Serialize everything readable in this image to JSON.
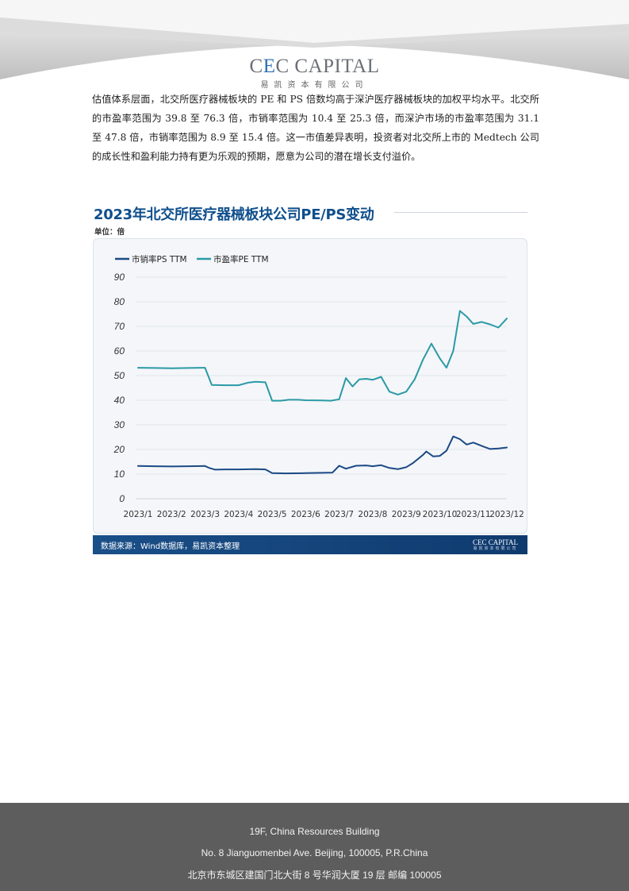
{
  "logo": {
    "brand_pre": "C",
    "brand_e": "E",
    "brand_post": "C CAPITAL",
    "sub": "易凯资本有限公司"
  },
  "body_text": "估值体系层面，北交所医疗器械板块的 PE 和 PS 倍数均高于深沪医疗器械板块的加权平均水平。北交所的市盈率范围为 39.8 至 76.3 倍，市销率范围为 10.4 至 25.3 倍，而深沪市场的市盈率范围为 31.1 至 47.8 倍，市销率范围为 8.9 至 15.4 倍。这一市值差异表明，投资者对北交所上市的 Medtech 公司的成长性和盈利能力持有更为乐观的预期，愿意为公司的潜在增长支付溢价。",
  "chart": {
    "title": "2023年北交所医疗器械板块公司PE/PS变动",
    "unit": "单位：倍"
  },
  "chart_data": {
    "type": "line",
    "title": "2023年北交所医疗器械板块公司PE/PS变动",
    "ylabel": "单位：倍",
    "ylim": [
      0,
      90
    ],
    "yticks": [
      0,
      10,
      20,
      30,
      40,
      50,
      60,
      70,
      80,
      90
    ],
    "x_labels": [
      "2023/1",
      "2023/2",
      "2023/3",
      "2023/4",
      "2023/5",
      "2023/6",
      "2023/7",
      "2023/8",
      "2023/9",
      "2023/10",
      "2023/11",
      "2023/12"
    ],
    "x_start": 1.0,
    "x_end": 12.0,
    "grid": "horizontal",
    "legend": "top-left",
    "series": [
      {
        "name": "市销率PS TTM",
        "color": "#1b4a86",
        "points": [
          [
            1.0,
            13.3
          ],
          [
            1.5,
            13.2
          ],
          [
            2.0,
            13.1
          ],
          [
            2.5,
            13.2
          ],
          [
            3.0,
            13.3
          ],
          [
            3.1,
            12.6
          ],
          [
            3.3,
            11.8
          ],
          [
            3.6,
            11.9
          ],
          [
            4.0,
            11.9
          ],
          [
            4.5,
            12.0
          ],
          [
            4.8,
            11.9
          ],
          [
            5.0,
            10.4
          ],
          [
            5.4,
            10.3
          ],
          [
            6.0,
            10.4
          ],
          [
            6.5,
            10.5
          ],
          [
            6.8,
            10.6
          ],
          [
            7.0,
            13.4
          ],
          [
            7.2,
            12.2
          ],
          [
            7.5,
            13.4
          ],
          [
            7.8,
            13.5
          ],
          [
            8.0,
            13.2
          ],
          [
            8.25,
            13.6
          ],
          [
            8.5,
            12.5
          ],
          [
            8.75,
            12.0
          ],
          [
            9.0,
            12.8
          ],
          [
            9.2,
            14.5
          ],
          [
            9.5,
            17.8
          ],
          [
            9.6,
            19.2
          ],
          [
            9.8,
            17.2
          ],
          [
            10.0,
            17.4
          ],
          [
            10.2,
            19.5
          ],
          [
            10.4,
            25.3
          ],
          [
            10.6,
            24.2
          ],
          [
            10.8,
            22.0
          ],
          [
            11.0,
            22.8
          ],
          [
            11.3,
            21.2
          ],
          [
            11.5,
            20.2
          ],
          [
            11.75,
            20.4
          ],
          [
            12.0,
            20.8
          ]
        ]
      },
      {
        "name": "市盈率PE TTM",
        "color": "#2a9aa6",
        "points": [
          [
            1.0,
            53.2
          ],
          [
            1.5,
            53.1
          ],
          [
            2.0,
            53.0
          ],
          [
            2.5,
            53.1
          ],
          [
            3.0,
            53.2
          ],
          [
            3.2,
            46.2
          ],
          [
            3.6,
            46.1
          ],
          [
            4.0,
            46.1
          ],
          [
            4.3,
            47.2
          ],
          [
            4.5,
            47.5
          ],
          [
            4.8,
            47.3
          ],
          [
            5.0,
            39.8
          ],
          [
            5.25,
            39.8
          ],
          [
            5.5,
            40.2
          ],
          [
            5.75,
            40.2
          ],
          [
            6.0,
            40.0
          ],
          [
            6.5,
            39.9
          ],
          [
            6.75,
            39.8
          ],
          [
            7.0,
            40.4
          ],
          [
            7.2,
            49.0
          ],
          [
            7.4,
            45.6
          ],
          [
            7.6,
            48.5
          ],
          [
            7.8,
            48.7
          ],
          [
            8.0,
            48.3
          ],
          [
            8.25,
            49.5
          ],
          [
            8.5,
            43.5
          ],
          [
            8.75,
            42.3
          ],
          [
            9.0,
            43.5
          ],
          [
            9.25,
            48.5
          ],
          [
            9.5,
            56.5
          ],
          [
            9.75,
            63.0
          ],
          [
            10.0,
            57.0
          ],
          [
            10.2,
            53.2
          ],
          [
            10.4,
            60.0
          ],
          [
            10.6,
            76.3
          ],
          [
            10.8,
            74.0
          ],
          [
            11.0,
            71.0
          ],
          [
            11.25,
            71.8
          ],
          [
            11.5,
            70.8
          ],
          [
            11.75,
            69.5
          ],
          [
            12.0,
            73.2
          ]
        ]
      }
    ]
  },
  "source": {
    "text": "数据来源：Wind数据库，易凯资本整理",
    "logo_brand": "CEC CAPITAL",
    "logo_sub": "易凯资本有限公司"
  },
  "footer": {
    "line1": "19F, China Resources Building",
    "line2": "No. 8 Jianguomenbei Ave. Beijing, 100005, P.R.China",
    "line3": "北京市东城区建国门北大街 8 号华润大厦 19 层 邮编 100005"
  }
}
